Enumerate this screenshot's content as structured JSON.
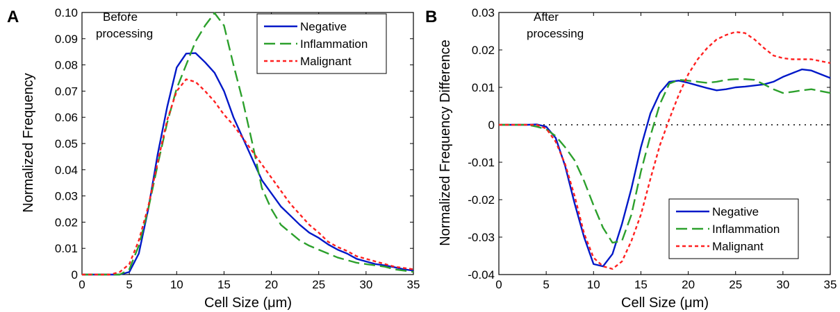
{
  "chart_data": [
    {
      "type": "line",
      "panel": "A",
      "annotation": [
        "Before",
        "processing"
      ],
      "xlabel": "Cell Size (μm)",
      "ylabel": "Normalized Frequency",
      "xlim": [
        0,
        35
      ],
      "ylim": [
        0,
        0.1
      ],
      "xticks": [
        "0",
        "5",
        "10",
        "15",
        "20",
        "25",
        "30",
        "35"
      ],
      "yticks": [
        "0",
        "0.01",
        "0.02",
        "0.03",
        "0.04",
        "0.05",
        "0.06",
        "0.07",
        "0.08",
        "0.09",
        "0.10"
      ],
      "grid": false,
      "legend_position": "top-right",
      "x": [
        0,
        1,
        2,
        3,
        4,
        5,
        6,
        7,
        8,
        9,
        10,
        11,
        12,
        13,
        14,
        15,
        16,
        17,
        18,
        19,
        20,
        21,
        22,
        23,
        24,
        25,
        26,
        27,
        28,
        29,
        30,
        31,
        32,
        33,
        34,
        35
      ],
      "series": [
        {
          "name": "Negative",
          "color": "#0018c8",
          "dash": "solid",
          "values": [
            0,
            0,
            0,
            0,
            0,
            0.001,
            0.008,
            0.025,
            0.046,
            0.064,
            0.079,
            0.0843,
            0.0845,
            0.081,
            0.077,
            0.07,
            0.06,
            0.052,
            0.044,
            0.036,
            0.031,
            0.026,
            0.0225,
            0.019,
            0.016,
            0.014,
            0.0115,
            0.0095,
            0.008,
            0.006,
            0.005,
            0.004,
            0.0035,
            0.0028,
            0.002,
            0.0015
          ]
        },
        {
          "name": "Inflammation",
          "color": "#2ca02c",
          "dash": "long",
          "values": [
            0,
            0,
            0,
            0,
            0,
            0.002,
            0.011,
            0.025,
            0.042,
            0.058,
            0.071,
            0.08,
            0.089,
            0.095,
            0.0998,
            0.095,
            0.08,
            0.066,
            0.05,
            0.033,
            0.025,
            0.019,
            0.016,
            0.013,
            0.011,
            0.0095,
            0.008,
            0.0065,
            0.0055,
            0.0045,
            0.004,
            0.0035,
            0.003,
            0.002,
            0.0015,
            0.001
          ]
        },
        {
          "name": "Malignant",
          "color": "#ff2020",
          "dash": "short",
          "values": [
            0,
            0,
            0,
            0,
            0.001,
            0.004,
            0.013,
            0.026,
            0.043,
            0.059,
            0.07,
            0.0745,
            0.0735,
            0.07,
            0.066,
            0.061,
            0.057,
            0.052,
            0.047,
            0.042,
            0.037,
            0.032,
            0.027,
            0.023,
            0.019,
            0.016,
            0.0125,
            0.0105,
            0.009,
            0.007,
            0.006,
            0.005,
            0.004,
            0.003,
            0.0025,
            0.002
          ]
        }
      ]
    },
    {
      "type": "line",
      "panel": "B",
      "annotation": [
        "After",
        "processing"
      ],
      "xlabel": "Cell Size (μm)",
      "ylabel": "Normalized Frequency Difference",
      "xlim": [
        0,
        35
      ],
      "ylim": [
        -0.04,
        0.03
      ],
      "xticks": [
        "0",
        "5",
        "10",
        "15",
        "20",
        "25",
        "30",
        "35"
      ],
      "yticks": [
        "-0.04",
        "-0.03",
        "-0.02",
        "-0.01",
        "0",
        "0.01",
        "0.02",
        "0.03"
      ],
      "grid": false,
      "reference_line_y": 0,
      "legend_position": "bottom-right",
      "x": [
        0,
        1,
        2,
        3,
        4,
        5,
        6,
        7,
        8,
        9,
        10,
        11,
        12,
        13,
        14,
        15,
        16,
        17,
        18,
        19,
        20,
        21,
        22,
        23,
        24,
        25,
        26,
        27,
        28,
        29,
        30,
        31,
        32,
        33,
        34,
        35
      ],
      "series": [
        {
          "name": "Negative",
          "color": "#0018c8",
          "dash": "solid",
          "values": [
            0,
            0,
            0,
            0,
            0.0001,
            -0.0005,
            -0.0035,
            -0.011,
            -0.021,
            -0.03,
            -0.0372,
            -0.0378,
            -0.0345,
            -0.0265,
            -0.017,
            -0.006,
            0.003,
            0.0085,
            0.0115,
            0.0118,
            0.0112,
            0.0105,
            0.0098,
            0.0092,
            0.0095,
            0.01,
            0.0102,
            0.0105,
            0.0108,
            0.0115,
            0.0128,
            0.0138,
            0.0148,
            0.0145,
            0.0135,
            0.0125
          ]
        },
        {
          "name": "Inflammation",
          "color": "#2ca02c",
          "dash": "long",
          "values": [
            0,
            0,
            0,
            0,
            -0.0005,
            -0.0012,
            -0.003,
            -0.006,
            -0.0095,
            -0.015,
            -0.0215,
            -0.0275,
            -0.0315,
            -0.031,
            -0.024,
            -0.0125,
            -0.003,
            0.0055,
            0.011,
            0.012,
            0.0118,
            0.0115,
            0.0112,
            0.0115,
            0.012,
            0.0122,
            0.0122,
            0.012,
            0.0108,
            0.0095,
            0.0085,
            0.0088,
            0.0092,
            0.0095,
            0.009,
            0.0085
          ]
        },
        {
          "name": "Malignant",
          "color": "#ff2020",
          "dash": "short",
          "values": [
            0,
            0,
            0,
            0,
            0,
            -0.001,
            -0.0045,
            -0.0105,
            -0.019,
            -0.029,
            -0.0355,
            -0.0378,
            -0.0385,
            -0.0365,
            -0.031,
            -0.024,
            -0.0145,
            -0.0055,
            0.0015,
            0.008,
            0.0135,
            0.0175,
            0.0205,
            0.0228,
            0.024,
            0.0248,
            0.0245,
            0.0228,
            0.0205,
            0.0185,
            0.0178,
            0.0175,
            0.0175,
            0.0175,
            0.017,
            0.0165
          ]
        }
      ]
    }
  ]
}
